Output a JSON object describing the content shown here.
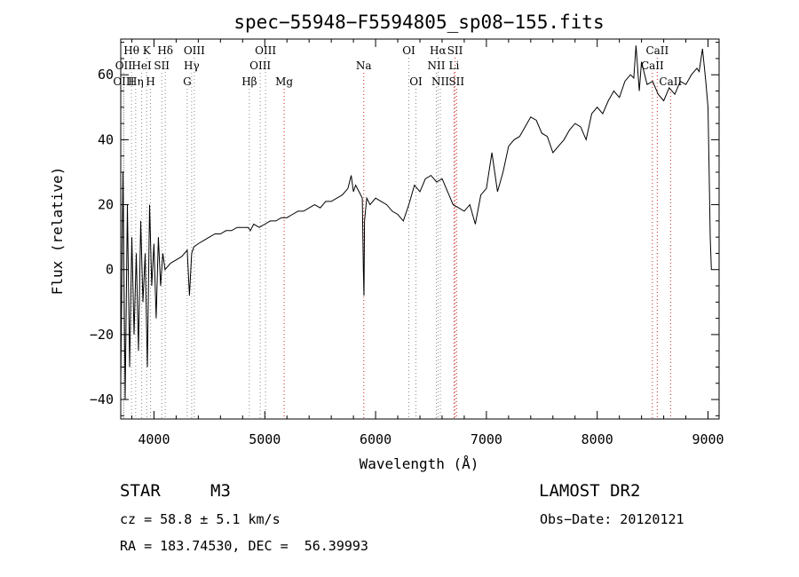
{
  "chart_data": {
    "type": "line",
    "title": "spec−55948−F5594805_sp08−155.fits",
    "xlabel": "Wavelength (Å)",
    "ylabel": "Flux (relative)",
    "xlim": [
      3700,
      9100
    ],
    "ylim": [
      -46,
      71
    ],
    "xticks": [
      4000,
      5000,
      6000,
      7000,
      8000,
      9000
    ],
    "xtick_labels": [
      "4000",
      "5000",
      "6000",
      "7000",
      "8000",
      "9000"
    ],
    "yticks": [
      -40,
      -20,
      0,
      20,
      40,
      60
    ],
    "ytick_labels": [
      "−40",
      "−20",
      "0",
      "20",
      "40",
      "60"
    ],
    "series": [
      {
        "name": "flux",
        "x": [
          3700,
          3720,
          3740,
          3760,
          3780,
          3800,
          3820,
          3840,
          3860,
          3880,
          3900,
          3920,
          3940,
          3960,
          3980,
          4000,
          4020,
          4040,
          4060,
          4080,
          4100,
          4150,
          4200,
          4250,
          4300,
          4320,
          4340,
          4360,
          4400,
          4450,
          4500,
          4550,
          4600,
          4650,
          4700,
          4750,
          4800,
          4850,
          4870,
          4900,
          4950,
          5000,
          5050,
          5100,
          5150,
          5200,
          5250,
          5300,
          5350,
          5400,
          5450,
          5500,
          5550,
          5600,
          5650,
          5700,
          5750,
          5780,
          5800,
          5820,
          5850,
          5880,
          5890,
          5895,
          5900,
          5920,
          5950,
          6000,
          6050,
          6100,
          6150,
          6200,
          6250,
          6300,
          6350,
          6400,
          6450,
          6500,
          6550,
          6600,
          6650,
          6700,
          6750,
          6800,
          6850,
          6900,
          6950,
          7000,
          7050,
          7100,
          7150,
          7200,
          7250,
          7300,
          7350,
          7400,
          7450,
          7500,
          7550,
          7600,
          7650,
          7700,
          7750,
          7800,
          7850,
          7900,
          7950,
          8000,
          8050,
          8100,
          8150,
          8200,
          8250,
          8300,
          8330,
          8350,
          8380,
          8400,
          8450,
          8500,
          8550,
          8600,
          8650,
          8700,
          8750,
          8800,
          8850,
          8900,
          8920,
          8950,
          8980,
          9000,
          9010,
          9020,
          9030
        ],
        "y": [
          -35,
          30,
          -40,
          20,
          -30,
          10,
          -20,
          5,
          -25,
          15,
          -10,
          5,
          -30,
          20,
          -5,
          8,
          -15,
          10,
          -5,
          5,
          0,
          2,
          3,
          4,
          6,
          -8,
          5,
          7,
          8,
          9,
          10,
          11,
          11,
          12,
          12,
          13,
          13,
          13,
          12,
          14,
          13,
          14,
          15,
          15,
          16,
          16,
          17,
          18,
          18,
          19,
          20,
          19,
          21,
          21,
          22,
          23,
          25,
          29,
          24,
          26,
          24,
          22,
          0,
          -8,
          15,
          22,
          20,
          22,
          21,
          20,
          18,
          17,
          15,
          20,
          26,
          24,
          28,
          29,
          27,
          28,
          24,
          20,
          19,
          18,
          20,
          14,
          23,
          25,
          36,
          24,
          30,
          38,
          40,
          41,
          44,
          47,
          46,
          42,
          41,
          36,
          38,
          40,
          43,
          45,
          44,
          40,
          48,
          50,
          48,
          52,
          55,
          53,
          58,
          60,
          59,
          69,
          55,
          64,
          57,
          58,
          54,
          52,
          56,
          54,
          58,
          57,
          60,
          62,
          61,
          68,
          58,
          50,
          30,
          10,
          0
        ]
      }
    ],
    "spectral_lines": [
      {
        "label": "Hθ",
        "x": 3797,
        "row": 1,
        "color": "gray"
      },
      {
        "label": "K",
        "x": 3934,
        "row": 1,
        "color": "gray"
      },
      {
        "label": "Hδ",
        "x": 4102,
        "row": 1,
        "color": "gray"
      },
      {
        "label": "OIII",
        "x": 4364,
        "row": 1,
        "color": "gray"
      },
      {
        "label": "OIII",
        "x": 5007,
        "row": 1,
        "color": "gray"
      },
      {
        "label": "OI",
        "x": 6300,
        "row": 1,
        "color": "gray"
      },
      {
        "label": "Hα",
        "x": 6563,
        "row": 1,
        "color": "gray"
      },
      {
        "label": "SII",
        "x": 6717,
        "row": 1,
        "color": "red"
      },
      {
        "label": "CaII",
        "x": 8542,
        "row": 1,
        "color": "red"
      },
      {
        "label": "OII",
        "x": 3727,
        "row": 2,
        "color": "gray"
      },
      {
        "label": "HeI",
        "x": 3889,
        "row": 2,
        "color": "gray"
      },
      {
        "label": "SII",
        "x": 4070,
        "row": 2,
        "color": "gray"
      },
      {
        "label": "Hγ",
        "x": 4340,
        "row": 2,
        "color": "gray"
      },
      {
        "label": "OIII",
        "x": 4959,
        "row": 2,
        "color": "gray"
      },
      {
        "label": "Na",
        "x": 5893,
        "row": 2,
        "color": "red"
      },
      {
        "label": "NII",
        "x": 6548,
        "row": 2,
        "color": "gray"
      },
      {
        "label": "Li",
        "x": 6708,
        "row": 2,
        "color": "red"
      },
      {
        "label": "CaII",
        "x": 8498,
        "row": 2,
        "color": "red"
      },
      {
        "label": "OIII",
        "x": 3727,
        "row": 3,
        "color": "gray"
      },
      {
        "label": "Hη",
        "x": 3835,
        "row": 3,
        "color": "gray"
      },
      {
        "label": "H",
        "x": 3969,
        "row": 3,
        "color": "gray"
      },
      {
        "label": "G",
        "x": 4300,
        "row": 3,
        "color": "gray"
      },
      {
        "label": "Hβ",
        "x": 4861,
        "row": 3,
        "color": "gray"
      },
      {
        "label": "Mg",
        "x": 5175,
        "row": 3,
        "color": "red"
      },
      {
        "label": "OI",
        "x": 6364,
        "row": 3,
        "color": "gray"
      },
      {
        "label": "NII",
        "x": 6584,
        "row": 3,
        "color": "gray"
      },
      {
        "label": "SII",
        "x": 6731,
        "row": 3,
        "color": "red"
      },
      {
        "label": "CaII",
        "x": 8662,
        "row": 3,
        "color": "red"
      }
    ]
  },
  "info": {
    "object_class": "STAR",
    "subclass": "M3",
    "survey": "LAMOST DR2",
    "cz": "cz = 58.8 ± 5.1 km/s",
    "obs_date": "Obs−Date: 20120121",
    "radec": "RA = 183.74530, DEC =  56.39993"
  },
  "colors": {
    "line_gray": "#888888",
    "line_red": "#cc2222",
    "axis": "#000000"
  }
}
